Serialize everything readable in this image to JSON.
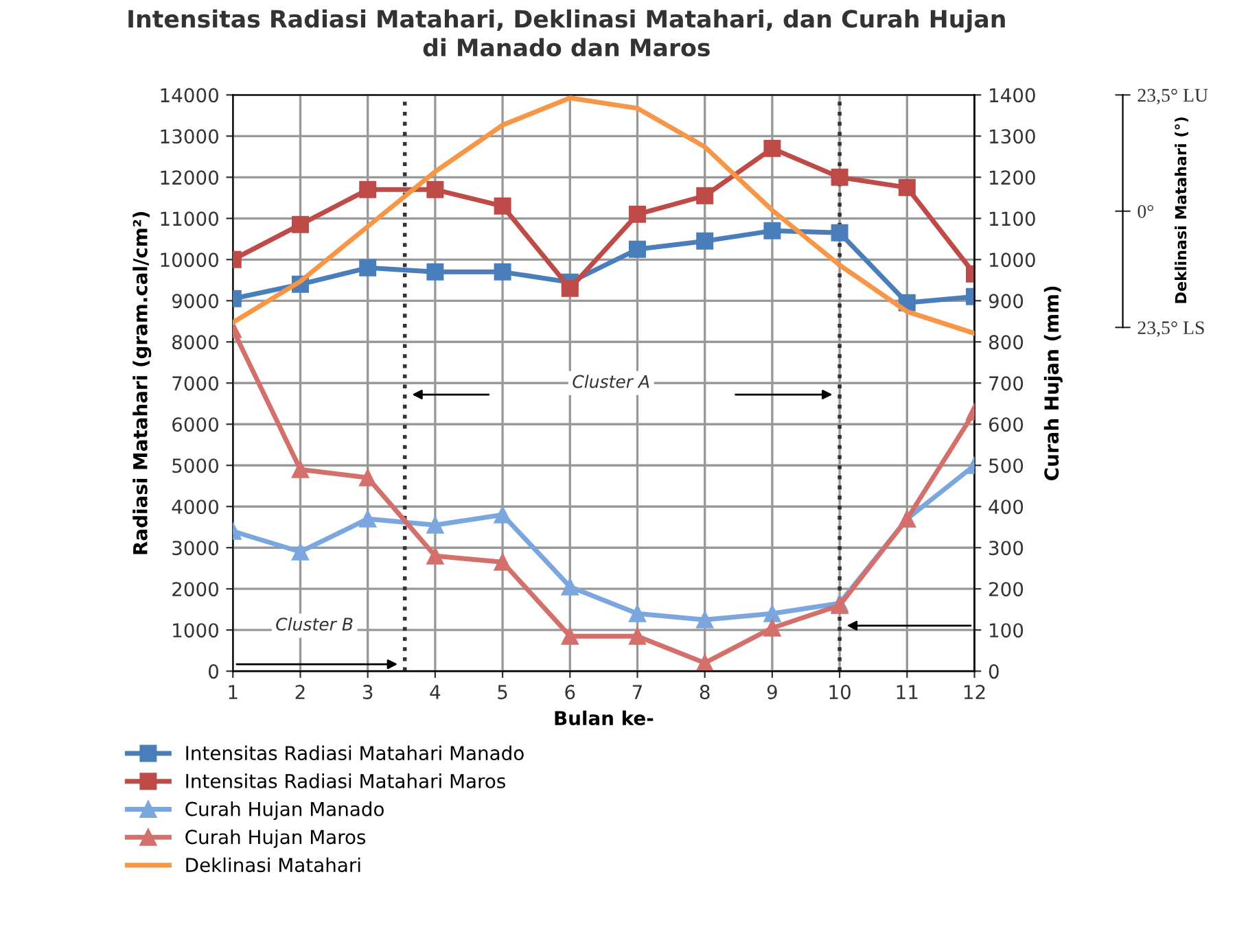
{
  "chart_data": {
    "type": "line",
    "title": "Intensitas Radiasi Matahari, Deklinasi Matahari, dan Curah Hujan di Manado dan Maros",
    "xlabel": "Bulan ke-",
    "ylabel": "Radiasi Matahari (gram.cal/cm²)",
    "y2label": "Curah Hujan (mm)",
    "y3label": "Deklinasi Matahari (°)",
    "x": [
      1,
      2,
      3,
      4,
      5,
      6,
      7,
      8,
      9,
      10,
      11,
      12
    ],
    "xlim": [
      1,
      12
    ],
    "xticks": [
      1,
      2,
      3,
      4,
      5,
      6,
      7,
      8,
      9,
      10,
      11,
      12
    ],
    "ylim": [
      0,
      14000
    ],
    "yticks": [
      0,
      1000,
      2000,
      3000,
      4000,
      5000,
      6000,
      7000,
      8000,
      9000,
      10000,
      11000,
      12000,
      13000,
      14000
    ],
    "y2lim": [
      0,
      1400
    ],
    "y2ticks": [
      0,
      100,
      200,
      300,
      400,
      500,
      600,
      700,
      800,
      900,
      1000,
      1100,
      1200,
      1300,
      1400
    ],
    "y3lim": [
      -93,
      23.5
    ],
    "y3ticks": [
      {
        "value": 23.5,
        "label": "23,5° LU"
      },
      {
        "value": 0,
        "label": "0°"
      },
      {
        "value": -23.5,
        "label": "23,5° LS"
      }
    ],
    "grid": true,
    "legend": "bottom",
    "series": [
      {
        "name": "Intensitas Radiasi Matahari Manado",
        "color": "#4a7ebb",
        "marker": "square",
        "values": [
          9050,
          9400,
          9800,
          9700,
          9700,
          9450,
          10250,
          10450,
          10700,
          10650,
          8950,
          9100
        ]
      },
      {
        "name": "Intensitas Radiasi Matahari Maros",
        "color": "#be4b48",
        "marker": "square",
        "values": [
          10000,
          10850,
          11700,
          11700,
          11300,
          9300,
          11100,
          11550,
          12700,
          12000,
          11750,
          9650
        ]
      },
      {
        "name": "Curah Hujan Manado",
        "color": "#7ba6de",
        "marker": "triangle",
        "axis": "y2",
        "values": [
          340,
          290,
          370,
          355,
          380,
          205,
          140,
          125,
          140,
          165,
          370,
          500
        ]
      },
      {
        "name": "Curah Hujan Maros",
        "color": "#d4706c",
        "marker": "triangle",
        "axis": "y2",
        "values": [
          830,
          490,
          470,
          280,
          265,
          85,
          85,
          20,
          105,
          160,
          370,
          630
        ]
      },
      {
        "name": "Deklinasi Matahari",
        "color": "#f79646",
        "marker": "none",
        "axis": "y3",
        "values": [
          -22.5,
          -14.2,
          -3.1,
          8.0,
          17.4,
          22.9,
          20.8,
          13.0,
          0.2,
          -10.9,
          -20.3,
          -24.7
        ]
      }
    ],
    "ref_lines": [
      {
        "axis": "x",
        "value": 3.55,
        "line_style": "dotted",
        "color": "#333333"
      },
      {
        "axis": "x",
        "value": 10,
        "line_style": "dotted",
        "color": "#333333"
      }
    ],
    "annotations": [
      "Cluster A",
      "Cluster B"
    ]
  }
}
